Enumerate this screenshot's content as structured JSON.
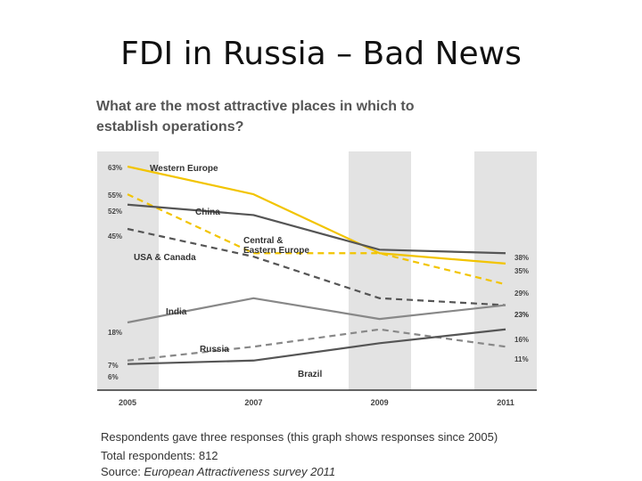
{
  "slide": {
    "title": "FDI in Russia – Bad News"
  },
  "chart_data": {
    "type": "line",
    "title": "What are the most attractive places in which to establish operations?",
    "x": [
      2005,
      2007,
      2009,
      2011
    ],
    "tick_labels": [
      "2005",
      "2007",
      "2009",
      "2011"
    ],
    "ylim": [
      0,
      65
    ],
    "grid": false,
    "series": [
      {
        "name": "Western Europe",
        "values": [
          63,
          55,
          38,
          35
        ],
        "color": "#f2c400",
        "dashed": false,
        "start_label": "63%",
        "end_label": "35%"
      },
      {
        "name": "USA & Canada",
        "values": [
          55,
          38,
          38,
          29
        ],
        "color": "#f2c400",
        "dashed": true,
        "start_label": "55%",
        "end_label": "29%"
      },
      {
        "name": "China",
        "values": [
          52,
          49,
          39,
          38
        ],
        "color": "#555555",
        "dashed": false,
        "start_label": "52%",
        "end_label": "38%"
      },
      {
        "name": "Central & Eastern Europe",
        "values": [
          45,
          37,
          25,
          23
        ],
        "color": "#555555",
        "dashed": true,
        "start_label": "45%",
        "end_label": "23%"
      },
      {
        "name": "India",
        "values": [
          18,
          25,
          19,
          23
        ],
        "color": "#888888",
        "dashed": false,
        "start_label": "18%",
        "end_label": "23%"
      },
      {
        "name": "Russia",
        "values": [
          7,
          11,
          16,
          11
        ],
        "color": "#888888",
        "dashed": true,
        "start_label": "7%",
        "end_label": "11%"
      },
      {
        "name": "Brazil",
        "values": [
          6,
          7,
          12,
          16
        ],
        "color": "#555555",
        "dashed": false,
        "start_label": "6%",
        "end_label": "16%"
      }
    ]
  },
  "footer": {
    "note": "Respondents gave three responses (this graph shows responses since 2005)",
    "total": "Total respondents: 812",
    "source_prefix": "Source: ",
    "source_name": "European Attractiveness survey 2011"
  }
}
